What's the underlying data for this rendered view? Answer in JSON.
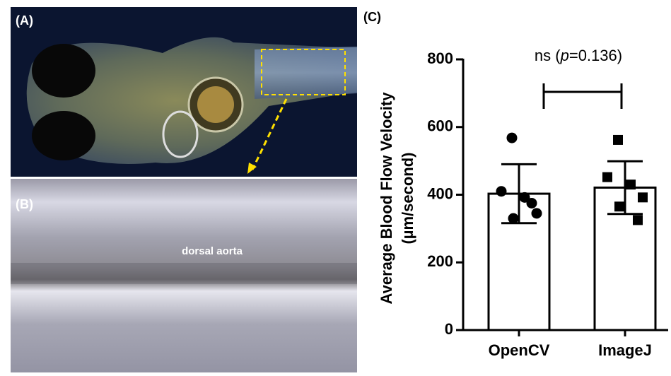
{
  "panels": {
    "a_label": "(A)",
    "b_label": "(B)",
    "c_label": "(C)",
    "b_annotation": "dorsal aorta"
  },
  "chart_data": {
    "type": "bar",
    "y_label": [
      "Average Blood Flow Velocity",
      "(µm/second)"
    ],
    "annotation": [
      "ns (",
      "p",
      "=0.136)"
    ],
    "categories": [
      "OpenCV",
      "ImageJ"
    ],
    "values": [
      403,
      421
    ],
    "errors": [
      87,
      78
    ],
    "points": [
      [
        568,
        410,
        392,
        345,
        330,
        375
      ],
      [
        562,
        452,
        430,
        392,
        365,
        325
      ]
    ],
    "markers": [
      "circle",
      "square"
    ],
    "color": "#ffffff",
    "ylim": [
      0,
      800
    ],
    "yticks": [
      0,
      200,
      400,
      600,
      800
    ]
  }
}
